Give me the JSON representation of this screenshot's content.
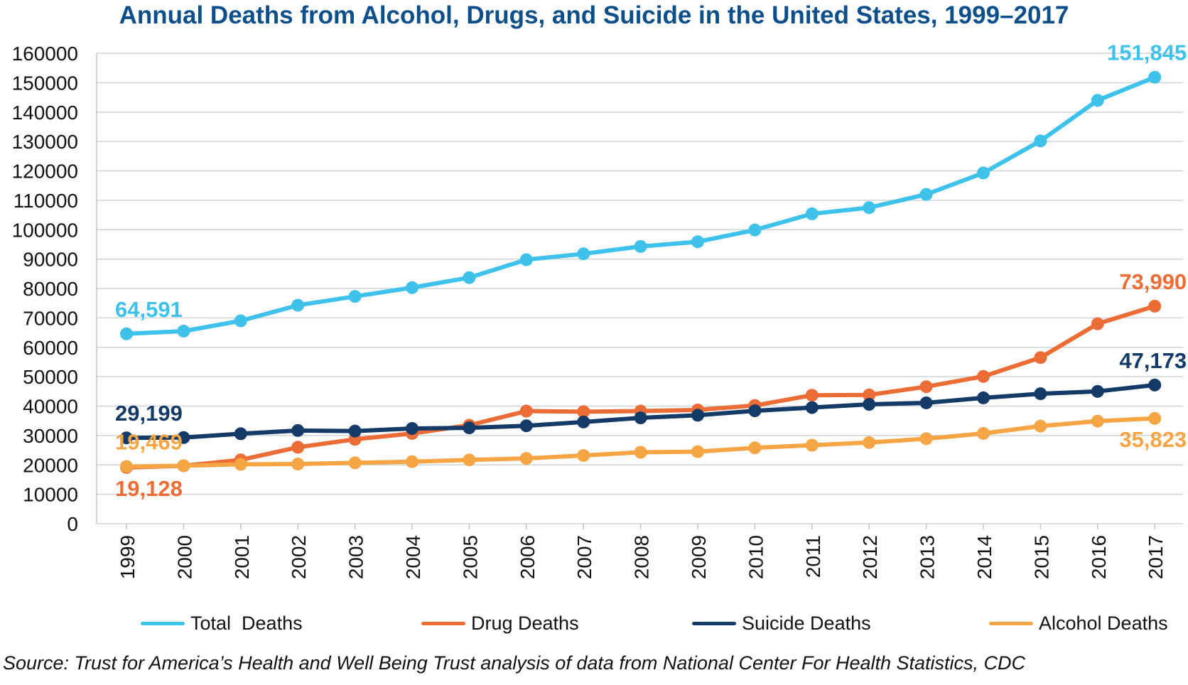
{
  "chart_data": {
    "type": "line",
    "title": "Annual Deaths from Alcohol, Drugs, and Suicide in the United States, 1999–2017",
    "x": [
      "1999",
      "2000",
      "2001",
      "2002",
      "2003",
      "2004",
      "2005",
      "2006",
      "2007",
      "2008",
      "2009",
      "2010",
      "2011",
      "2012",
      "2013",
      "2014",
      "2015",
      "2016",
      "2017"
    ],
    "ylim": [
      0,
      160000
    ],
    "y_ticks": [
      "0",
      "10000",
      "20000",
      "30000",
      "40000",
      "50000",
      "60000",
      "70000",
      "80000",
      "90000",
      "100000",
      "110000",
      "120000",
      "130000",
      "140000",
      "150000",
      "160000"
    ],
    "grid": "horizontal",
    "legend_position": "bottom",
    "series": [
      {
        "name": "Total  Deaths",
        "color": "#3ec1ea",
        "values": [
          64591,
          65500,
          69000,
          74300,
          77300,
          80300,
          83700,
          89800,
          91800,
          94300,
          95900,
          99900,
          105400,
          107500,
          112000,
          119300,
          130200,
          144000,
          151845
        ],
        "labels": [
          {
            "index": 0,
            "text": "64,591",
            "pos": "above"
          },
          {
            "index": 18,
            "text": "151,845",
            "pos": "above"
          }
        ]
      },
      {
        "name": "Drug Deaths",
        "color": "#ec6c35",
        "values": [
          19128,
          19700,
          21700,
          26000,
          28700,
          30700,
          33500,
          38300,
          38100,
          38300,
          38700,
          40200,
          43700,
          43800,
          46600,
          50100,
          56500,
          68000,
          73990
        ],
        "labels": [
          {
            "index": 0,
            "text": "19,128",
            "pos": "below"
          },
          {
            "index": 18,
            "text": "73,990",
            "pos": "above"
          }
        ]
      },
      {
        "name": "Suicide Deaths",
        "color": "#143a68",
        "values": [
          29199,
          29300,
          30600,
          31700,
          31500,
          32400,
          32600,
          33300,
          34600,
          36000,
          36900,
          38400,
          39500,
          40600,
          41100,
          42800,
          44200,
          45000,
          47173
        ],
        "labels": [
          {
            "index": 0,
            "text": "29,199",
            "pos": "above"
          },
          {
            "index": 18,
            "text": "47,173",
            "pos": "above"
          }
        ]
      },
      {
        "name": "Alcohol Deaths",
        "color": "#f6a545",
        "values": [
          19469,
          19700,
          20200,
          20300,
          20700,
          21100,
          21700,
          22200,
          23200,
          24300,
          24500,
          25800,
          26700,
          27600,
          28900,
          30700,
          33200,
          34900,
          35823
        ],
        "labels": [
          {
            "index": 0,
            "text": "19,469",
            "pos": "above"
          },
          {
            "index": 18,
            "text": "35,823",
            "pos": "below"
          }
        ]
      }
    ],
    "source": "Source: Trust for America’s Health and Well Being Trust analysis of data from National Center For Health Statistics, CDC"
  }
}
